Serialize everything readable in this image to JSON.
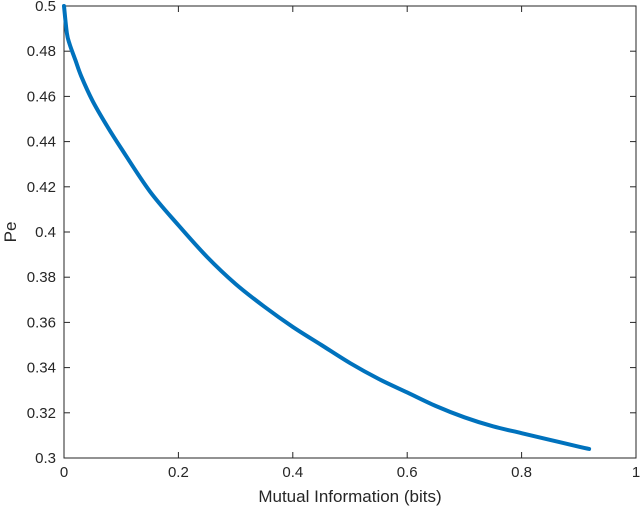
{
  "chart_data": {
    "type": "line",
    "title": "",
    "xlabel": "Mutual Information (bits)",
    "ylabel": "Pe",
    "xlim": [
      0,
      1
    ],
    "ylim": [
      0.3,
      0.5
    ],
    "xticks": [
      0,
      0.2,
      0.4,
      0.6,
      0.8,
      1
    ],
    "xtick_labels": [
      "0",
      "0.2",
      "0.4",
      "0.6",
      "0.8",
      "1"
    ],
    "yticks": [
      0.3,
      0.32,
      0.34,
      0.36,
      0.38,
      0.4,
      0.42,
      0.44,
      0.46,
      0.48,
      0.5
    ],
    "ytick_labels": [
      "0.3",
      "0.32",
      "0.34",
      "0.36",
      "0.38",
      "0.4",
      "0.42",
      "0.44",
      "0.46",
      "0.48",
      "0.5"
    ],
    "grid": false,
    "box": true,
    "series": [
      {
        "color": "#0072BD",
        "x": [
          0,
          0.005,
          0.01,
          0.02,
          0.03,
          0.05,
          0.075,
          0.1,
          0.15,
          0.2,
          0.25,
          0.3,
          0.35,
          0.4,
          0.45,
          0.5,
          0.55,
          0.6,
          0.65,
          0.7,
          0.75,
          0.8,
          0.85,
          0.9,
          0.918
        ],
        "y": [
          0.5,
          0.488,
          0.483,
          0.476,
          0.469,
          0.458,
          0.447,
          0.437,
          0.418,
          0.403,
          0.389,
          0.377,
          0.367,
          0.358,
          0.35,
          0.342,
          0.335,
          0.329,
          0.323,
          0.318,
          0.314,
          0.311,
          0.308,
          0.305,
          0.304
        ]
      }
    ]
  }
}
